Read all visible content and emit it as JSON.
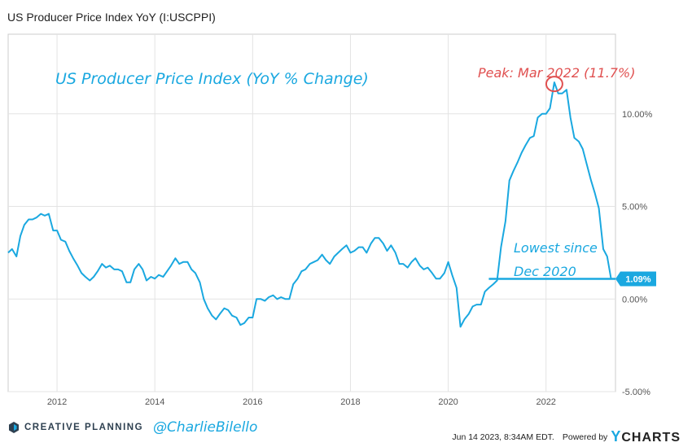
{
  "title": "US Producer Price Index YoY (I:USCPPI)",
  "chart_data": {
    "type": "line",
    "title": "US Producer Price Index YoY (I:USCPPI)",
    "annotation_title": "US Producer Price Index (YoY % Change)",
    "annotation_peak": "Peak: Mar 2022 (11.7%)",
    "annotation_low_line1": "Lowest since",
    "annotation_low_line2": "Dec 2020",
    "last_value_label": "1.09%",
    "last_value": 1.09,
    "xlim": [
      2011.0,
      2023.42
    ],
    "ylim": [
      -5.0,
      14.3
    ],
    "x_ticks": [
      2012,
      2014,
      2016,
      2018,
      2020,
      2022
    ],
    "x_tick_labels": [
      "2012",
      "2014",
      "2016",
      "2018",
      "2020",
      "2022"
    ],
    "y_ticks": [
      10,
      5,
      0,
      -5
    ],
    "y_tick_labels": [
      "10.00%",
      "5.00%",
      "0.00%",
      "-5.00%"
    ],
    "grid": true,
    "series": [
      {
        "color": "#1aa8e0",
        "points": [
          [
            2011.0,
            2.5
          ],
          [
            2011.08,
            2.7
          ],
          [
            2011.17,
            2.3
          ],
          [
            2011.25,
            3.4
          ],
          [
            2011.33,
            4.0
          ],
          [
            2011.42,
            4.3
          ],
          [
            2011.5,
            4.3
          ],
          [
            2011.58,
            4.4
          ],
          [
            2011.67,
            4.6
          ],
          [
            2011.75,
            4.5
          ],
          [
            2011.83,
            4.6
          ],
          [
            2011.92,
            3.7
          ],
          [
            2012.0,
            3.7
          ],
          [
            2012.08,
            3.2
          ],
          [
            2012.17,
            3.1
          ],
          [
            2012.25,
            2.6
          ],
          [
            2012.33,
            2.2
          ],
          [
            2012.42,
            1.8
          ],
          [
            2012.5,
            1.4
          ],
          [
            2012.58,
            1.2
          ],
          [
            2012.67,
            1.0
          ],
          [
            2012.75,
            1.2
          ],
          [
            2012.83,
            1.5
          ],
          [
            2012.92,
            1.9
          ],
          [
            2013.0,
            1.7
          ],
          [
            2013.08,
            1.8
          ],
          [
            2013.17,
            1.6
          ],
          [
            2013.25,
            1.6
          ],
          [
            2013.33,
            1.5
          ],
          [
            2013.42,
            0.9
          ],
          [
            2013.5,
            0.9
          ],
          [
            2013.58,
            1.6
          ],
          [
            2013.67,
            1.9
          ],
          [
            2013.75,
            1.6
          ],
          [
            2013.83,
            1.0
          ],
          [
            2013.92,
            1.2
          ],
          [
            2014.0,
            1.1
          ],
          [
            2014.08,
            1.3
          ],
          [
            2014.17,
            1.2
          ],
          [
            2014.25,
            1.5
          ],
          [
            2014.33,
            1.8
          ],
          [
            2014.42,
            2.2
          ],
          [
            2014.5,
            1.9
          ],
          [
            2014.58,
            2.0
          ],
          [
            2014.67,
            2.0
          ],
          [
            2014.75,
            1.6
          ],
          [
            2014.83,
            1.4
          ],
          [
            2014.92,
            0.9
          ],
          [
            2015.0,
            0.0
          ],
          [
            2015.08,
            -0.5
          ],
          [
            2015.17,
            -0.9
          ],
          [
            2015.25,
            -1.1
          ],
          [
            2015.33,
            -0.8
          ],
          [
            2015.42,
            -0.5
          ],
          [
            2015.5,
            -0.6
          ],
          [
            2015.58,
            -0.9
          ],
          [
            2015.67,
            -1.0
          ],
          [
            2015.75,
            -1.4
          ],
          [
            2015.83,
            -1.3
          ],
          [
            2015.92,
            -1.0
          ],
          [
            2016.0,
            -1.0
          ],
          [
            2016.08,
            0.0
          ],
          [
            2016.17,
            0.0
          ],
          [
            2016.25,
            -0.1
          ],
          [
            2016.33,
            0.1
          ],
          [
            2016.42,
            0.2
          ],
          [
            2016.5,
            0.0
          ],
          [
            2016.58,
            0.1
          ],
          [
            2016.67,
            0.0
          ],
          [
            2016.75,
            0.0
          ],
          [
            2016.83,
            0.8
          ],
          [
            2016.92,
            1.1
          ],
          [
            2017.0,
            1.5
          ],
          [
            2017.08,
            1.6
          ],
          [
            2017.17,
            1.9
          ],
          [
            2017.25,
            2.0
          ],
          [
            2017.33,
            2.1
          ],
          [
            2017.42,
            2.4
          ],
          [
            2017.5,
            2.1
          ],
          [
            2017.58,
            1.9
          ],
          [
            2017.67,
            2.3
          ],
          [
            2017.75,
            2.5
          ],
          [
            2017.83,
            2.7
          ],
          [
            2017.92,
            2.9
          ],
          [
            2018.0,
            2.5
          ],
          [
            2018.08,
            2.6
          ],
          [
            2018.17,
            2.8
          ],
          [
            2018.25,
            2.8
          ],
          [
            2018.33,
            2.5
          ],
          [
            2018.42,
            3.0
          ],
          [
            2018.5,
            3.3
          ],
          [
            2018.58,
            3.3
          ],
          [
            2018.67,
            3.0
          ],
          [
            2018.75,
            2.6
          ],
          [
            2018.83,
            2.9
          ],
          [
            2018.92,
            2.5
          ],
          [
            2019.0,
            1.9
          ],
          [
            2019.08,
            1.9
          ],
          [
            2019.17,
            1.7
          ],
          [
            2019.25,
            2.0
          ],
          [
            2019.33,
            2.2
          ],
          [
            2019.42,
            1.8
          ],
          [
            2019.5,
            1.6
          ],
          [
            2019.58,
            1.7
          ],
          [
            2019.67,
            1.4
          ],
          [
            2019.75,
            1.1
          ],
          [
            2019.83,
            1.1
          ],
          [
            2019.92,
            1.4
          ],
          [
            2020.0,
            2.0
          ],
          [
            2020.08,
            1.3
          ],
          [
            2020.17,
            0.6
          ],
          [
            2020.25,
            -1.5
          ],
          [
            2020.33,
            -1.1
          ],
          [
            2020.42,
            -0.8
          ],
          [
            2020.5,
            -0.4
          ],
          [
            2020.58,
            -0.3
          ],
          [
            2020.67,
            -0.3
          ],
          [
            2020.75,
            0.4
          ],
          [
            2020.83,
            0.6
          ],
          [
            2020.92,
            0.8
          ],
          [
            2021.0,
            1.0
          ],
          [
            2021.08,
            2.8
          ],
          [
            2021.17,
            4.2
          ],
          [
            2021.25,
            6.4
          ],
          [
            2021.33,
            6.9
          ],
          [
            2021.42,
            7.4
          ],
          [
            2021.5,
            7.9
          ],
          [
            2021.58,
            8.3
          ],
          [
            2021.67,
            8.7
          ],
          [
            2021.75,
            8.8
          ],
          [
            2021.83,
            9.8
          ],
          [
            2021.92,
            10.0
          ],
          [
            2022.0,
            10.0
          ],
          [
            2022.08,
            10.3
          ],
          [
            2022.17,
            11.7
          ],
          [
            2022.25,
            11.1
          ],
          [
            2022.33,
            11.1
          ],
          [
            2022.42,
            11.3
          ],
          [
            2022.5,
            9.8
          ],
          [
            2022.58,
            8.7
          ],
          [
            2022.67,
            8.5
          ],
          [
            2022.75,
            8.1
          ],
          [
            2022.83,
            7.3
          ],
          [
            2022.92,
            6.4
          ],
          [
            2023.0,
            5.7
          ],
          [
            2023.08,
            4.9
          ],
          [
            2023.17,
            2.7
          ],
          [
            2023.25,
            2.3
          ],
          [
            2023.33,
            1.09
          ]
        ]
      }
    ]
  },
  "footer": {
    "brand": "CREATIVE PLANNING",
    "handle": "@CharlieBilello",
    "timestamp": "Jun 14 2023, 8:34AM EDT.",
    "powered_by": "Powered by",
    "ycharts_y": "Y",
    "ycharts_rest": "CHARTS"
  }
}
